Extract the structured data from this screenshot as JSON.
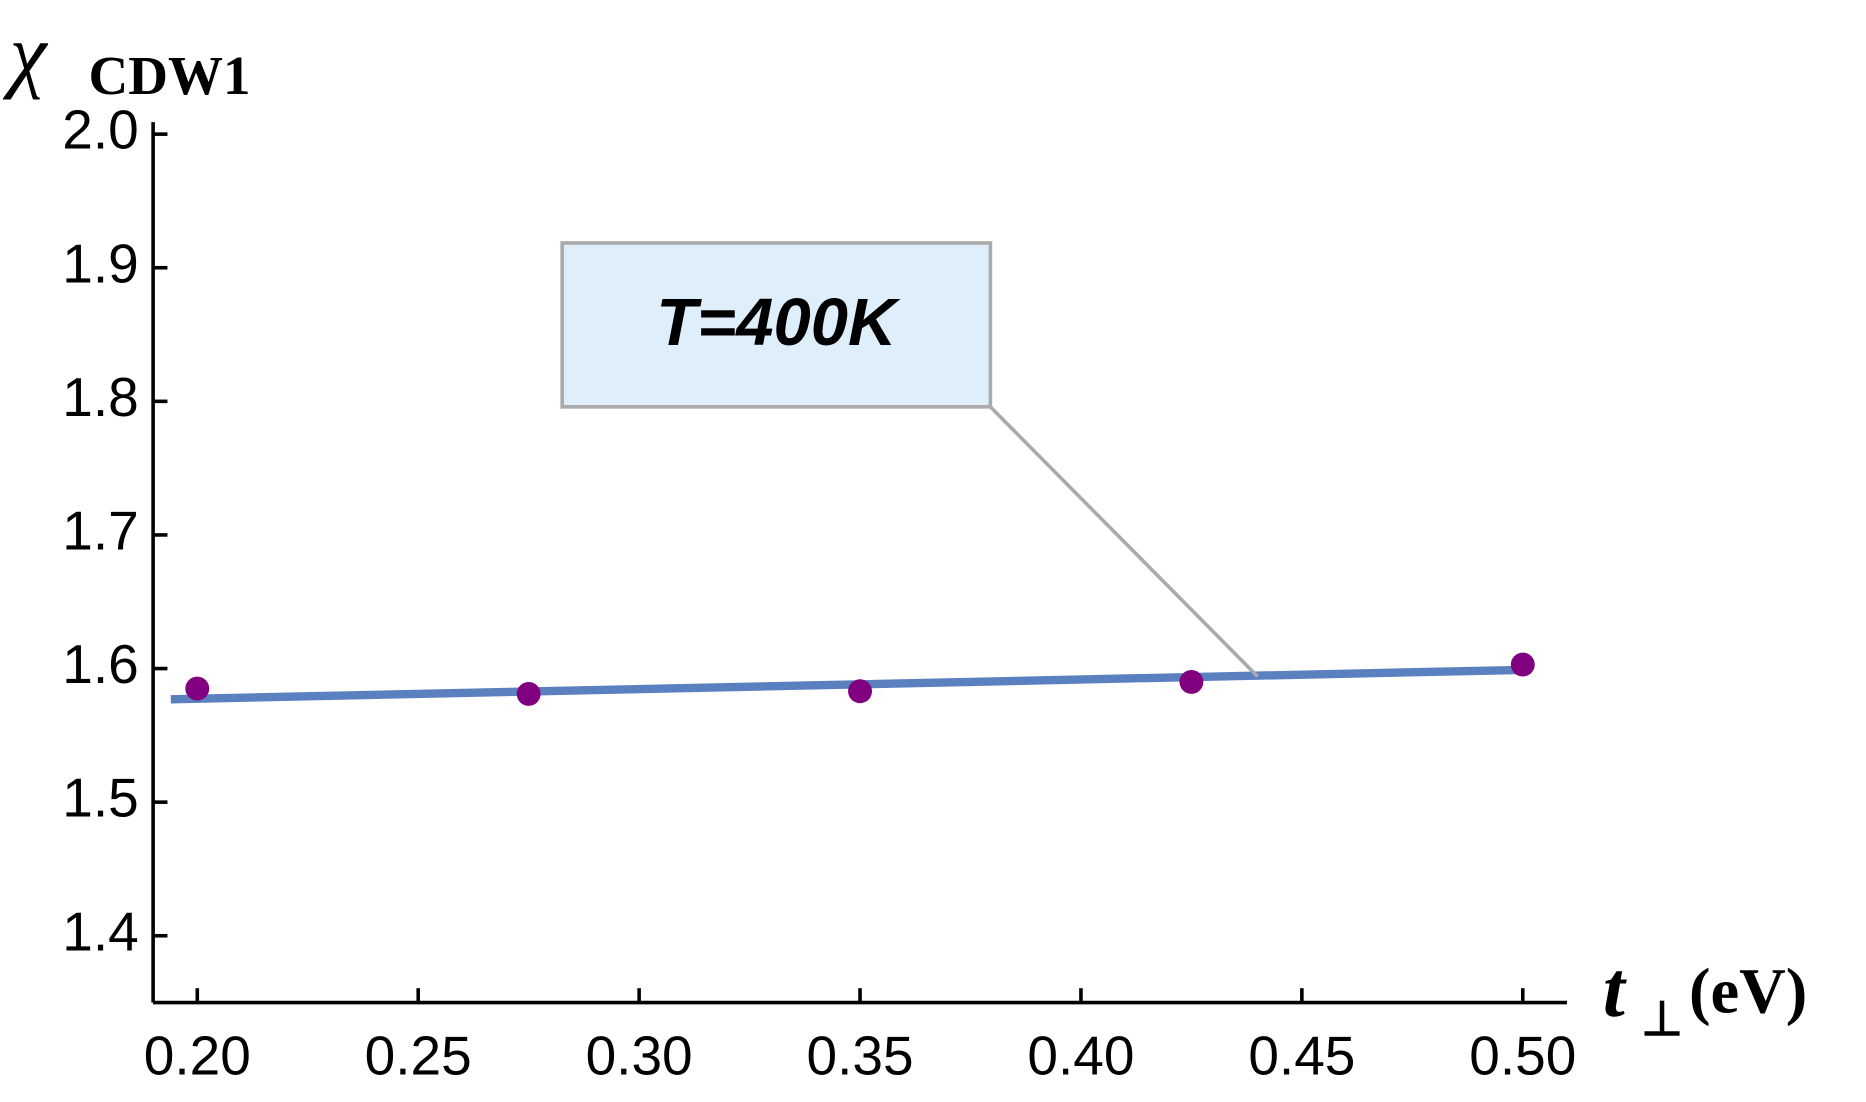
{
  "chart_data": {
    "type": "scatter",
    "ylabel": [
      "χ",
      "CDW1"
    ],
    "xlabel": [
      "t",
      "⊥",
      "(eV)"
    ],
    "annotation": {
      "text": "T=400K",
      "x": 0.44,
      "y": 1.594
    },
    "x": [
      0.2,
      0.275,
      0.35,
      0.425,
      0.5
    ],
    "series": [
      {
        "color": "#800080",
        "values": [
          1.585,
          1.581,
          1.583,
          1.59,
          1.603
        ]
      }
    ],
    "fit": {
      "color": "#5b80bf",
      "x": [
        0.194,
        0.5
      ],
      "values": [
        1.577,
        1.599
      ]
    },
    "xlim": [
      0.19,
      0.51
    ],
    "ylim": [
      1.35,
      2.0
    ],
    "xticks": [
      {
        "value": 0.2,
        "label": "0.20"
      },
      {
        "value": 0.25,
        "label": "0.25"
      },
      {
        "value": 0.3,
        "label": "0.30"
      },
      {
        "value": 0.35,
        "label": "0.35"
      },
      {
        "value": 0.4,
        "label": "0.40"
      },
      {
        "value": 0.45,
        "label": "0.45"
      },
      {
        "value": 0.5,
        "label": "0.50"
      }
    ],
    "yticks": [
      1.4,
      1.5,
      1.6,
      1.7,
      1.8,
      1.9,
      {
        "value": 2.0,
        "label": "2.0"
      }
    ]
  }
}
